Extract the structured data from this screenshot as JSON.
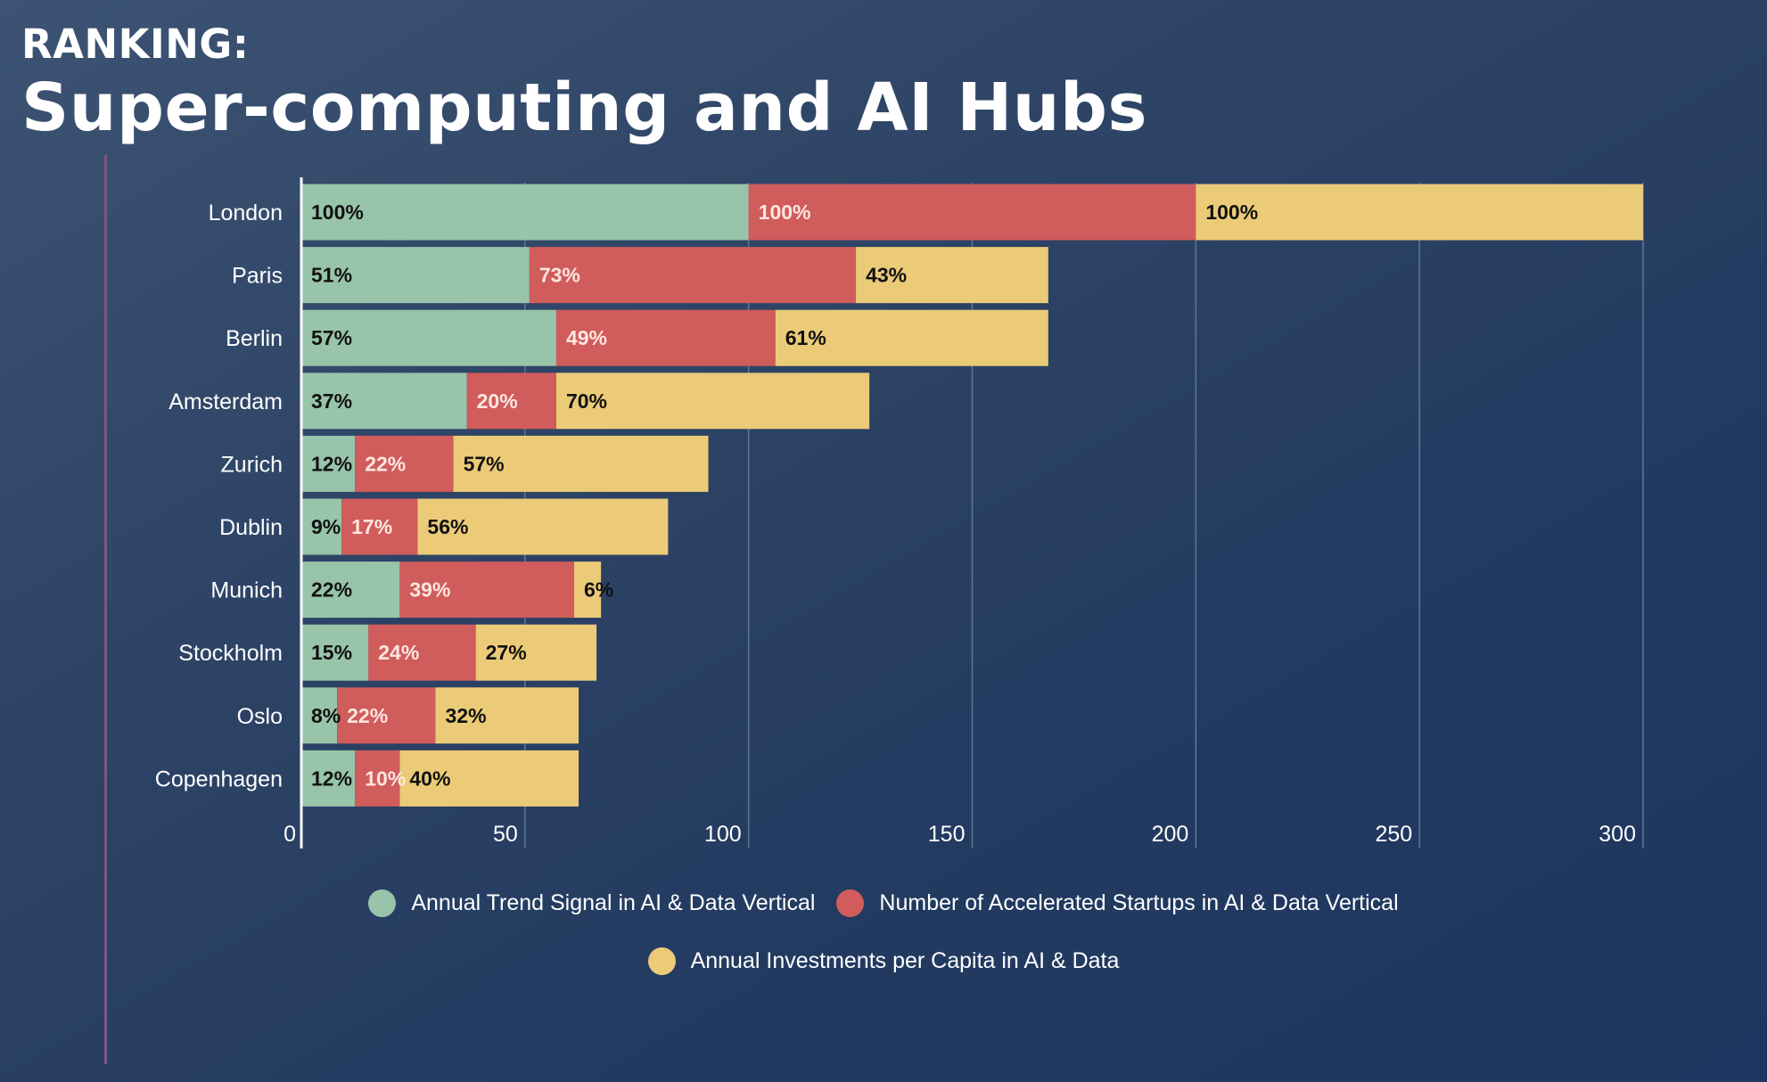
{
  "header": {
    "subtitle": "RANKING:",
    "title": "Super-computing and AI Hubs"
  },
  "chart_data": {
    "type": "bar",
    "orientation": "horizontal",
    "stacked": true,
    "title": "Super-computing and AI Hubs",
    "categories": [
      "London",
      "Paris",
      "Berlin",
      "Amsterdam",
      "Zurich",
      "Dublin",
      "Munich",
      "Stockholm",
      "Oslo",
      "Copenhagen"
    ],
    "series": [
      {
        "name": "Annual Trend Signal in AI & Data Vertical",
        "color": "#98c4aa",
        "label_color": "#111111",
        "values": [
          100,
          51,
          57,
          37,
          12,
          9,
          22,
          15,
          8,
          12
        ],
        "labels": [
          "100%",
          "51%",
          "57%",
          "37%",
          "12%",
          "9%",
          "22%",
          "15%",
          "8%",
          "12%"
        ]
      },
      {
        "name": "Number of Accelerated Startups in AI & Data Vertical",
        "color": "#d05c5b",
        "label_color": "#ffe6e0",
        "values": [
          100,
          73,
          49,
          20,
          22,
          17,
          39,
          24,
          22,
          10
        ],
        "labels": [
          "100%",
          "73%",
          "49%",
          "20%",
          "22%",
          "17%",
          "39%",
          "24%",
          "22%",
          "10%"
        ]
      },
      {
        "name": "Annual Investments per Capita in AI & Data",
        "color": "#ebcb78",
        "label_color": "#111111",
        "values": [
          100,
          43,
          61,
          70,
          57,
          56,
          6,
          27,
          32,
          40
        ],
        "labels": [
          "100%",
          "43%",
          "61%",
          "70%",
          "57%",
          "56%",
          "6%",
          "27%",
          "32%",
          "40%"
        ]
      }
    ],
    "xlim": [
      0,
      300
    ],
    "xticks": [
      0,
      50,
      100,
      150,
      200,
      250,
      300
    ],
    "xtick_labels": [
      "0",
      "50",
      "100",
      "150",
      "200",
      "250",
      "300"
    ],
    "grid": true,
    "legend_position": "bottom"
  }
}
